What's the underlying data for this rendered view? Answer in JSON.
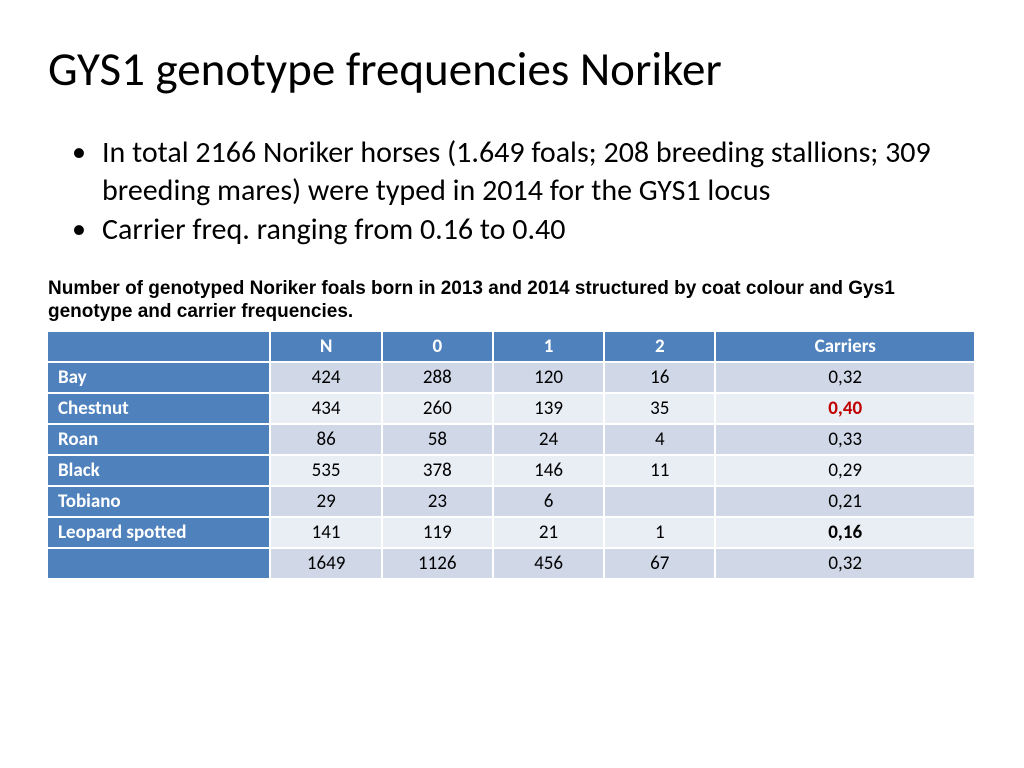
{
  "title": "GYS1 genotype frequencies Noriker",
  "bullets": [
    "In total 2166 Noriker horses (1.649 foals; 208 breeding stallions; 309 breeding mares) were typed in 2014 for the GYS1 locus",
    "Carrier freq. ranging from 0.16 to 0.40"
  ],
  "caption": "Number of genotyped Noriker foals born in 2013 and 2014 structured by coat colour and Gys1 genotype and carrier frequencies.",
  "table": {
    "colors": {
      "header_bg": "#4f81bd",
      "header_fg": "#ffffff",
      "rowhead_bg": "#4f81bd",
      "rowhead_fg": "#ffffff",
      "row_odd_bg": "#d0d8e8",
      "row_even_bg": "#e9edf4",
      "border": "#ffffff",
      "highlight_red": "#c00000"
    },
    "col_widths_pct": [
      24,
      12,
      12,
      12,
      12,
      28
    ],
    "columns": [
      "",
      "N",
      "0",
      "1",
      "2",
      "Carriers"
    ],
    "rows": [
      {
        "label": "Bay",
        "cells": [
          "424",
          "288",
          "120",
          "16",
          "0,32"
        ],
        "carrier_style": ""
      },
      {
        "label": "Chestnut",
        "cells": [
          "434",
          "260",
          "139",
          "35",
          "0,40"
        ],
        "carrier_style": "red"
      },
      {
        "label": "Roan",
        "cells": [
          "86",
          "58",
          "24",
          "4",
          "0,33"
        ],
        "carrier_style": ""
      },
      {
        "label": "Black",
        "cells": [
          "535",
          "378",
          "146",
          "11",
          "0,29"
        ],
        "carrier_style": ""
      },
      {
        "label": "Tobiano",
        "cells": [
          "29",
          "23",
          "6",
          "",
          "0,21"
        ],
        "carrier_style": ""
      },
      {
        "label": "Leopard spotted",
        "cells": [
          "141",
          "119",
          "21",
          "1",
          "0,16"
        ],
        "carrier_style": "bold"
      },
      {
        "label": "",
        "cells": [
          "1649",
          "1126",
          "456",
          "67",
          "0,32"
        ],
        "carrier_style": ""
      }
    ]
  }
}
